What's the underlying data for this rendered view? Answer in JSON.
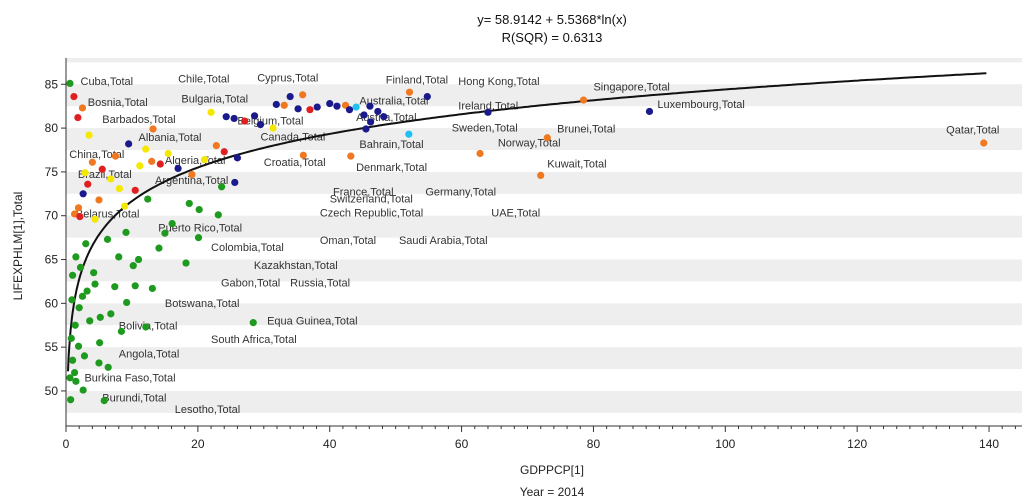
{
  "chart_data": {
    "type": "scatter",
    "title": "y= 58.9142 + 5.5368*ln(x)",
    "subtitle": "R(SQR) = 0.6313",
    "xlabel": "GDPPCP[1]",
    "ylabel": "LIFEXPHLM[1],Total",
    "footer": "Year = 2014",
    "xlim": [
      0,
      145
    ],
    "ylim": [
      46,
      88
    ],
    "xticks": [
      "0",
      "20",
      "40",
      "60",
      "80",
      "100",
      "120",
      "140"
    ],
    "yticks": [
      "50",
      "55",
      "60",
      "65",
      "70",
      "75",
      "80",
      "85"
    ],
    "grid": "horizontal bands",
    "fit": {
      "intercept": 58.9142,
      "slope": 5.5368
    },
    "colors": {
      "navy": "#1a1a8c",
      "red": "#e02020",
      "orange": "#f07820",
      "yellow": "#f5e800",
      "green": "#1e9a1e",
      "cyan": "#20c0f0",
      "fit_line": "#111111",
      "band": "#eeeeee"
    },
    "points": [
      [
        0.6,
        85.1,
        "green"
      ],
      [
        1.2,
        83.6,
        "red"
      ],
      [
        2.5,
        82.3,
        "orange"
      ],
      [
        1.8,
        81.2,
        "red"
      ],
      [
        3.5,
        79.2,
        "yellow"
      ],
      [
        9.5,
        78.2,
        "navy"
      ],
      [
        7.5,
        76.8,
        "orange"
      ],
      [
        4.0,
        76.1,
        "orange"
      ],
      [
        5.5,
        75.3,
        "red"
      ],
      [
        2.9,
        74.9,
        "yellow"
      ],
      [
        6.8,
        74.2,
        "yellow"
      ],
      [
        3.3,
        73.6,
        "red"
      ],
      [
        8.1,
        73.1,
        "yellow"
      ],
      [
        10.5,
        72.9,
        "red"
      ],
      [
        2.6,
        72.5,
        "navy"
      ],
      [
        5.0,
        71.8,
        "orange"
      ],
      [
        8.9,
        71.1,
        "yellow"
      ],
      [
        1.9,
        70.9,
        "orange"
      ],
      [
        1.3,
        70.2,
        "orange"
      ],
      [
        2.1,
        69.9,
        "red"
      ],
      [
        4.4,
        69.6,
        "yellow"
      ],
      [
        11.2,
        75.7,
        "yellow"
      ],
      [
        13.0,
        76.2,
        "orange"
      ],
      [
        14.3,
        75.9,
        "red"
      ],
      [
        12.1,
        77.6,
        "yellow"
      ],
      [
        13.2,
        79.9,
        "orange"
      ],
      [
        15.5,
        77.1,
        "yellow"
      ],
      [
        17.0,
        75.4,
        "navy"
      ],
      [
        19.1,
        74.7,
        "orange"
      ],
      [
        21.0,
        76.4,
        "yellow"
      ],
      [
        22.8,
        78.0,
        "orange"
      ],
      [
        24.0,
        77.3,
        "red"
      ],
      [
        26.0,
        76.6,
        "navy"
      ],
      [
        25.6,
        73.8,
        "navy"
      ],
      [
        22.0,
        81.8,
        "yellow"
      ],
      [
        24.3,
        81.3,
        "navy"
      ],
      [
        25.5,
        81.1,
        "navy"
      ],
      [
        27.1,
        80.8,
        "red"
      ],
      [
        28.6,
        81.4,
        "navy"
      ],
      [
        29.5,
        80.4,
        "navy"
      ],
      [
        31.4,
        80.0,
        "yellow"
      ],
      [
        31.9,
        82.7,
        "navy"
      ],
      [
        33.1,
        82.6,
        "orange"
      ],
      [
        34.0,
        83.6,
        "navy"
      ],
      [
        35.2,
        82.2,
        "navy"
      ],
      [
        35.9,
        83.8,
        "orange"
      ],
      [
        37.0,
        82.1,
        "red"
      ],
      [
        38.1,
        82.4,
        "navy"
      ],
      [
        40.0,
        82.8,
        "navy"
      ],
      [
        41.1,
        82.5,
        "navy"
      ],
      [
        42.4,
        82.6,
        "orange"
      ],
      [
        43.0,
        82.1,
        "navy"
      ],
      [
        44.0,
        82.4,
        "cyan"
      ],
      [
        45.2,
        81.5,
        "navy"
      ],
      [
        46.1,
        82.5,
        "navy"
      ],
      [
        47.3,
        81.9,
        "navy"
      ],
      [
        48.2,
        81.3,
        "navy"
      ],
      [
        46.2,
        80.7,
        "navy"
      ],
      [
        52.1,
        84.1,
        "orange"
      ],
      [
        54.8,
        83.6,
        "navy"
      ],
      [
        52.0,
        79.3,
        "cyan"
      ],
      [
        45.5,
        79.9,
        "navy"
      ],
      [
        36.0,
        76.9,
        "orange"
      ],
      [
        43.2,
        76.8,
        "orange"
      ],
      [
        62.8,
        77.1,
        "orange"
      ],
      [
        64.0,
        81.8,
        "navy"
      ],
      [
        73.0,
        78.9,
        "orange"
      ],
      [
        72.0,
        74.6,
        "orange"
      ],
      [
        78.5,
        83.2,
        "orange"
      ],
      [
        88.5,
        81.9,
        "navy"
      ],
      [
        139.2,
        78.3,
        "orange"
      ],
      [
        28.4,
        57.8,
        "green"
      ],
      [
        3.0,
        66.8,
        "green"
      ],
      [
        1.5,
        65.3,
        "green"
      ],
      [
        2.2,
        64.1,
        "green"
      ],
      [
        1.0,
        63.2,
        "green"
      ],
      [
        4.4,
        62.2,
        "green"
      ],
      [
        3.2,
        61.4,
        "green"
      ],
      [
        0.9,
        60.4,
        "green"
      ],
      [
        2.0,
        59.5,
        "green"
      ],
      [
        5.2,
        58.4,
        "green"
      ],
      [
        1.4,
        57.5,
        "green"
      ],
      [
        0.8,
        56.0,
        "green"
      ],
      [
        1.9,
        55.1,
        "green"
      ],
      [
        2.8,
        54.0,
        "green"
      ],
      [
        5.0,
        53.2,
        "green"
      ],
      [
        6.4,
        52.7,
        "green"
      ],
      [
        1.3,
        52.1,
        "green"
      ],
      [
        0.6,
        51.5,
        "green"
      ],
      [
        2.6,
        50.1,
        "green"
      ],
      [
        5.8,
        48.9,
        "green"
      ],
      [
        9.2,
        60.1,
        "green"
      ],
      [
        12.1,
        57.3,
        "green"
      ],
      [
        7.4,
        61.9,
        "green"
      ],
      [
        10.2,
        64.3,
        "green"
      ],
      [
        14.1,
        66.3,
        "green"
      ],
      [
        18.2,
        64.6,
        "green"
      ],
      [
        20.2,
        70.7,
        "green"
      ],
      [
        23.1,
        70.1,
        "green"
      ],
      [
        16.1,
        69.1,
        "green"
      ],
      [
        12.4,
        71.9,
        "green"
      ],
      [
        9.1,
        68.1,
        "green"
      ],
      [
        6.3,
        67.3,
        "green"
      ],
      [
        8.0,
        65.3,
        "green"
      ],
      [
        4.2,
        63.5,
        "green"
      ],
      [
        2.5,
        60.8,
        "green"
      ],
      [
        3.6,
        58.0,
        "green"
      ],
      [
        1.0,
        53.5,
        "green"
      ],
      [
        0.7,
        49.0,
        "green"
      ],
      [
        1.5,
        51.1,
        "green"
      ],
      [
        11.0,
        65.0,
        "green"
      ],
      [
        15.0,
        68.0,
        "green"
      ],
      [
        18.7,
        71.4,
        "green"
      ],
      [
        23.6,
        73.3,
        "green"
      ],
      [
        20.1,
        67.5,
        "green"
      ],
      [
        10.5,
        62.0,
        "green"
      ],
      [
        13.1,
        61.7,
        "green"
      ],
      [
        6.8,
        58.8,
        "green"
      ],
      [
        8.4,
        56.8,
        "green"
      ],
      [
        5.1,
        55.5,
        "green"
      ]
    ],
    "labels": [
      {
        "text": "Cuba,Total",
        "x": 2.2,
        "y": 84.9
      },
      {
        "text": "Chile,Total",
        "x": 17.0,
        "y": 85.2
      },
      {
        "text": "Cyprus,Total",
        "x": 29.0,
        "y": 85.3
      },
      {
        "text": "Finland,Total",
        "x": 48.5,
        "y": 85.1
      },
      {
        "text": "Hong Kong,Total",
        "x": 59.5,
        "y": 84.9
      },
      {
        "text": "Singapore,Total",
        "x": 80.0,
        "y": 84.3
      },
      {
        "text": "Bosnia,Total",
        "x": 3.3,
        "y": 82.5
      },
      {
        "text": "Bulgaria,Total",
        "x": 17.5,
        "y": 82.9
      },
      {
        "text": "Australia,Total",
        "x": 44.5,
        "y": 82.7
      },
      {
        "text": "Ireland,Total",
        "x": 59.5,
        "y": 82.1
      },
      {
        "text": "Luxembourg,Total",
        "x": 89.7,
        "y": 82.3
      },
      {
        "text": "Barbados,Total",
        "x": 5.5,
        "y": 80.6
      },
      {
        "text": "Belgium,Total",
        "x": 26.0,
        "y": 80.4
      },
      {
        "text": "Austria,Total",
        "x": 44.0,
        "y": 80.8
      },
      {
        "text": "Sweden,Total",
        "x": 58.5,
        "y": 79.6
      },
      {
        "text": "Brunei,Total",
        "x": 74.5,
        "y": 79.5
      },
      {
        "text": "Albania,Total",
        "x": 11.0,
        "y": 78.5
      },
      {
        "text": "Canada,Total",
        "x": 29.5,
        "y": 78.6
      },
      {
        "text": "Bahrain,Total",
        "x": 44.5,
        "y": 77.7
      },
      {
        "text": "Norway,Total",
        "x": 65.5,
        "y": 77.9
      },
      {
        "text": "Qatar,Total",
        "x": 133.5,
        "y": 79.4
      },
      {
        "text": "China,Total",
        "x": 0.5,
        "y": 76.6
      },
      {
        "text": "Algeria,Total",
        "x": 15.0,
        "y": 75.9
      },
      {
        "text": "Croatia,Total",
        "x": 30.0,
        "y": 75.7
      },
      {
        "text": "Denmark,Total",
        "x": 44.0,
        "y": 75.1
      },
      {
        "text": "Kuwait,Total",
        "x": 73.0,
        "y": 75.5
      },
      {
        "text": "Brazil,Total",
        "x": 1.8,
        "y": 74.3
      },
      {
        "text": "Argentina,Total",
        "x": 13.5,
        "y": 73.6
      },
      {
        "text": "France,Total",
        "x": 40.5,
        "y": 72.3
      },
      {
        "text": "Germany,Total",
        "x": 54.5,
        "y": 72.3
      },
      {
        "text": "Switzerland,Total",
        "x": 40.0,
        "y": 71.5
      },
      {
        "text": "Belarus,Total",
        "x": 1.5,
        "y": 69.8
      },
      {
        "text": "Czech Republic,Total",
        "x": 38.5,
        "y": 69.9
      },
      {
        "text": "UAE,Total",
        "x": 64.5,
        "y": 69.9
      },
      {
        "text": "Puerto Rico,Total",
        "x": 14.0,
        "y": 68.2
      },
      {
        "text": "Oman,Total",
        "x": 38.5,
        "y": 66.8
      },
      {
        "text": "Saudi Arabia,Total",
        "x": 50.5,
        "y": 66.8
      },
      {
        "text": "Colombia,Total",
        "x": 22.0,
        "y": 66.0
      },
      {
        "text": "Kazakhstan,Total",
        "x": 28.5,
        "y": 63.9
      },
      {
        "text": "Gabon,Total",
        "x": 23.5,
        "y": 61.9
      },
      {
        "text": "Russia,Total",
        "x": 34.0,
        "y": 61.9
      },
      {
        "text": "Botswana,Total",
        "x": 15.0,
        "y": 59.6
      },
      {
        "text": "Bolivia,Total",
        "x": 8.0,
        "y": 57.0
      },
      {
        "text": "Equa Guinea,Total",
        "x": 30.5,
        "y": 57.6
      },
      {
        "text": "South Africa,Total",
        "x": 22.0,
        "y": 55.5
      },
      {
        "text": "Angola,Total",
        "x": 8.0,
        "y": 53.8
      },
      {
        "text": "Burkina Faso,Total",
        "x": 2.8,
        "y": 51.1
      },
      {
        "text": "Burundi,Total",
        "x": 5.5,
        "y": 48.8
      },
      {
        "text": "Lesotho,Total",
        "x": 16.5,
        "y": 47.5
      }
    ]
  }
}
